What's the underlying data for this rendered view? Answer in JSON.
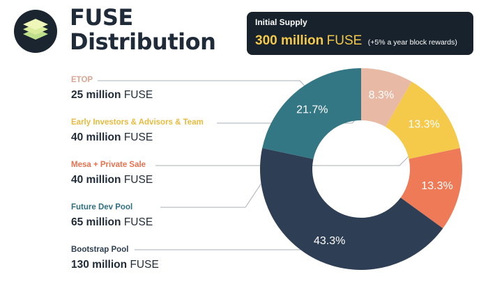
{
  "header": {
    "logo_icon": "stacked-layers-icon",
    "title_line1": "FUSE",
    "title_line2": "Distribution"
  },
  "supply": {
    "label": "Initial Supply",
    "amount": "300 million",
    "unit": "FUSE",
    "note": "(+5% a year block rewards)"
  },
  "legend": [
    {
      "name": "ETOP",
      "amount": "25 million",
      "unit": "FUSE",
      "color": "#d9a694"
    },
    {
      "name": "Early Investors & Advisors & Team",
      "amount": "40 million",
      "unit": "FUSE",
      "color": "#e8ba3f"
    },
    {
      "name": "Mesa + Private Sale",
      "amount": "40 million",
      "unit": "FUSE",
      "color": "#e8714e"
    },
    {
      "name": "Future Dev Pool",
      "amount": "65 million",
      "unit": "FUSE",
      "color": "#2f6f80"
    },
    {
      "name": "Bootstrap Pool",
      "amount": "130 million",
      "unit": "FUSE",
      "color": "#2e3e52"
    }
  ],
  "chart_data": {
    "type": "pie",
    "style": "donut",
    "categories": [
      "ETOP",
      "Early Investors & Advisors & Team",
      "Mesa + Private Sale",
      "Bootstrap Pool",
      "Future Dev Pool"
    ],
    "values": [
      25,
      40,
      40,
      130,
      65
    ],
    "percent_labels": [
      "8.3%",
      "13.3%",
      "13.3%",
      "43.3%",
      "21.7%"
    ],
    "colors": [
      "#e8baa6",
      "#f5c94a",
      "#ee7a57",
      "#2e3f55",
      "#337785"
    ],
    "start": "top",
    "direction": "clockwise"
  }
}
